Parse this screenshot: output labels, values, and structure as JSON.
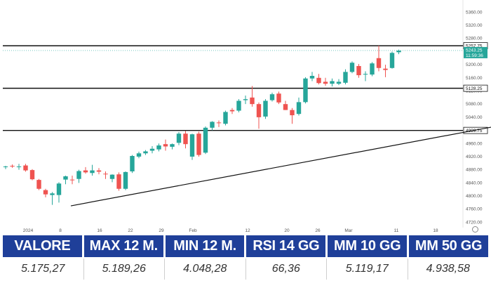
{
  "chart_data": {
    "type": "candlestick",
    "instrument_price_label": "5243.25",
    "countdown_label": "11:59:36",
    "y_ticks": [
      "5360.00",
      "5320.00",
      "5280.00",
      "5240.00",
      "5200.00",
      "5160.00",
      "5120.00",
      "5080.00",
      "5040.00",
      "5000.00",
      "4960.00",
      "4920.00",
      "4880.00",
      "4840.00",
      "4800.00",
      "4760.00",
      "4720.00"
    ],
    "x_ticks": [
      "2024",
      "8",
      "16",
      "22",
      "29",
      "Feb",
      "12",
      "20",
      "26",
      "Mar",
      "11",
      "18"
    ],
    "ylim": [
      4708,
      5380
    ],
    "levels": [
      {
        "label": "5257.75",
        "value": 5257.75
      },
      {
        "label": "5128.25",
        "value": 5128.25
      },
      {
        "label": "4999.75",
        "value": 4999.75
      }
    ],
    "trendline": {
      "x_start": 10,
      "y_start": 4770,
      "x_end": 94,
      "y_end": 5090
    },
    "candles": [
      {
        "o": 4888,
        "h": 4892,
        "l": 4882,
        "c": 4890
      },
      {
        "o": 4892,
        "h": 4896,
        "l": 4886,
        "c": 4890
      },
      {
        "o": 4890,
        "h": 4898,
        "l": 4880,
        "c": 4890
      },
      {
        "o": 4893,
        "h": 4898,
        "l": 4874,
        "c": 4878
      },
      {
        "o": 4879,
        "h": 4882,
        "l": 4848,
        "c": 4851
      },
      {
        "o": 4849,
        "h": 4852,
        "l": 4818,
        "c": 4822
      },
      {
        "o": 4818,
        "h": 4822,
        "l": 4796,
        "c": 4805
      },
      {
        "o": 4803,
        "h": 4812,
        "l": 4773,
        "c": 4808
      },
      {
        "o": 4803,
        "h": 4842,
        "l": 4780,
        "c": 4838
      },
      {
        "o": 4850,
        "h": 4862,
        "l": 4836,
        "c": 4860
      },
      {
        "o": 4850,
        "h": 4862,
        "l": 4836,
        "c": 4848
      },
      {
        "o": 4852,
        "h": 4880,
        "l": 4840,
        "c": 4876
      },
      {
        "o": 4878,
        "h": 4888,
        "l": 4868,
        "c": 4872
      },
      {
        "o": 4870,
        "h": 4895,
        "l": 4862,
        "c": 4878
      },
      {
        "o": 4878,
        "h": 4885,
        "l": 4866,
        "c": 4874
      },
      {
        "o": 4868,
        "h": 4875,
        "l": 4852,
        "c": 4866
      },
      {
        "o": 4852,
        "h": 4866,
        "l": 4842,
        "c": 4865
      },
      {
        "o": 4866,
        "h": 4872,
        "l": 4816,
        "c": 4822
      },
      {
        "o": 4822,
        "h": 4875,
        "l": 4818,
        "c": 4873
      },
      {
        "o": 4875,
        "h": 4925,
        "l": 4870,
        "c": 4922
      },
      {
        "o": 4920,
        "h": 4935,
        "l": 4915,
        "c": 4930
      },
      {
        "o": 4930,
        "h": 4940,
        "l": 4925,
        "c": 4936
      },
      {
        "o": 4938,
        "h": 4952,
        "l": 4930,
        "c": 4944
      },
      {
        "o": 4942,
        "h": 4960,
        "l": 4936,
        "c": 4954
      },
      {
        "o": 4958,
        "h": 4972,
        "l": 4938,
        "c": 4951
      },
      {
        "o": 4950,
        "h": 4960,
        "l": 4942,
        "c": 4958
      },
      {
        "o": 4962,
        "h": 4995,
        "l": 4955,
        "c": 4990
      },
      {
        "o": 4990,
        "h": 4998,
        "l": 4945,
        "c": 4958
      },
      {
        "o": 4920,
        "h": 4990,
        "l": 4910,
        "c": 4988
      },
      {
        "o": 4990,
        "h": 4996,
        "l": 4920,
        "c": 4925
      },
      {
        "o": 4932,
        "h": 5012,
        "l": 4928,
        "c": 5008
      },
      {
        "o": 5008,
        "h": 5028,
        "l": 5000,
        "c": 5026
      },
      {
        "o": 5024,
        "h": 5030,
        "l": 5010,
        "c": 5022
      },
      {
        "o": 5020,
        "h": 5060,
        "l": 5015,
        "c": 5056
      },
      {
        "o": 5062,
        "h": 5068,
        "l": 5050,
        "c": 5058
      },
      {
        "o": 5060,
        "h": 5095,
        "l": 5055,
        "c": 5090
      },
      {
        "o": 5092,
        "h": 5106,
        "l": 5080,
        "c": 5095
      },
      {
        "o": 5100,
        "h": 5135,
        "l": 5072,
        "c": 5080
      },
      {
        "o": 5080,
        "h": 5085,
        "l": 5005,
        "c": 5040
      },
      {
        "o": 5042,
        "h": 5095,
        "l": 5035,
        "c": 5090
      },
      {
        "o": 5092,
        "h": 5115,
        "l": 5088,
        "c": 5110
      },
      {
        "o": 5112,
        "h": 5118,
        "l": 5080,
        "c": 5085
      },
      {
        "o": 5080,
        "h": 5090,
        "l": 5062,
        "c": 5062
      },
      {
        "o": 5062,
        "h": 5068,
        "l": 5020,
        "c": 5046
      },
      {
        "o": 5050,
        "h": 5100,
        "l": 5045,
        "c": 5086
      },
      {
        "o": 5086,
        "h": 5162,
        "l": 5082,
        "c": 5158
      },
      {
        "o": 5158,
        "h": 5178,
        "l": 5150,
        "c": 5166
      },
      {
        "o": 5160,
        "h": 5172,
        "l": 5140,
        "c": 5144
      },
      {
        "o": 5148,
        "h": 5160,
        "l": 5136,
        "c": 5142
      },
      {
        "o": 5142,
        "h": 5158,
        "l": 5134,
        "c": 5150
      },
      {
        "o": 5142,
        "h": 5156,
        "l": 5138,
        "c": 5148
      },
      {
        "o": 5145,
        "h": 5186,
        "l": 5140,
        "c": 5178
      },
      {
        "o": 5178,
        "h": 5210,
        "l": 5174,
        "c": 5206
      },
      {
        "o": 5196,
        "h": 5202,
        "l": 5160,
        "c": 5168
      },
      {
        "o": 5170,
        "h": 5180,
        "l": 5150,
        "c": 5172
      },
      {
        "o": 5170,
        "h": 5208,
        "l": 5165,
        "c": 5204
      },
      {
        "o": 5220,
        "h": 5258,
        "l": 5180,
        "c": 5190
      },
      {
        "o": 5188,
        "h": 5200,
        "l": 5162,
        "c": 5184
      },
      {
        "o": 5190,
        "h": 5240,
        "l": 5188,
        "c": 5236
      },
      {
        "o": 5238,
        "h": 5246,
        "l": 5232,
        "c": 5243
      }
    ]
  },
  "stats": {
    "headers": [
      "VALORE",
      "MAX 12 M.",
      "MIN 12 M.",
      "RSI 14 GG",
      "MM 10 GG",
      "MM 50 GG"
    ],
    "values": [
      "5.175,27",
      "5.189,26",
      "4.048,28",
      "66,36",
      "5.119,17",
      "4.938,58"
    ]
  },
  "colors": {
    "up": "#26a69a",
    "down": "#ef5350",
    "header_bg": "#1f3f99",
    "price_tag": "#26a69a"
  }
}
